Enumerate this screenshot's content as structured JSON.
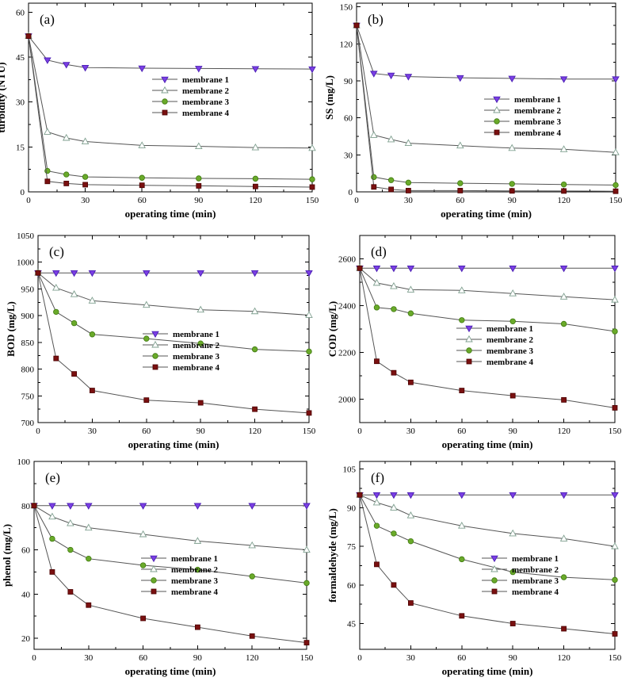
{
  "chart_data": [
    {
      "type": "line",
      "panel_label": "(a)",
      "xlabel": "operating time (min)",
      "ylabel": "turbidity (NTU)",
      "x": [
        0,
        10,
        20,
        30,
        60,
        90,
        120,
        150
      ],
      "xticks": [
        0,
        30,
        60,
        90,
        120,
        150
      ],
      "xlim": [
        0,
        150
      ],
      "ylim": [
        0,
        63
      ],
      "yticks": [
        0,
        15,
        30,
        45,
        60
      ],
      "legend_position": "center-right",
      "series": [
        {
          "name": "membrane 1",
          "values": [
            52,
            44,
            42.5,
            41.5,
            41.3,
            41.2,
            41.1,
            41.0
          ]
        },
        {
          "name": "membrane 2",
          "values": [
            52,
            20,
            18,
            16.8,
            15.5,
            15.2,
            14.8,
            14.6
          ]
        },
        {
          "name": "membrane 3",
          "values": [
            52,
            7,
            5.8,
            5.0,
            4.7,
            4.5,
            4.4,
            4.2
          ]
        },
        {
          "name": "membrane 4",
          "values": [
            52,
            3.5,
            2.8,
            2.4,
            2.2,
            2.0,
            1.8,
            1.6
          ]
        }
      ]
    },
    {
      "type": "line",
      "panel_label": "(b)",
      "xlabel": "operating time (min)",
      "ylabel": "SS (mg/L)",
      "x": [
        0,
        10,
        20,
        30,
        60,
        90,
        120,
        150
      ],
      "xticks": [
        0,
        30,
        60,
        90,
        120,
        150
      ],
      "xlim": [
        0,
        150
      ],
      "ylim": [
        0,
        153
      ],
      "yticks": [
        0,
        30,
        60,
        90,
        120,
        150
      ],
      "legend_position": "center-right",
      "series": [
        {
          "name": "membrane 1",
          "values": [
            135,
            96,
            94.5,
            93.5,
            92.5,
            92,
            91.5,
            91.5
          ]
        },
        {
          "name": "membrane 2",
          "values": [
            135,
            46,
            42.5,
            39.5,
            37.5,
            35.5,
            34.5,
            32
          ]
        },
        {
          "name": "membrane 3",
          "values": [
            135,
            12,
            9.5,
            7.5,
            7,
            6.5,
            6,
            5.5
          ]
        },
        {
          "name": "membrane 4",
          "values": [
            135,
            4,
            2,
            1,
            1,
            0.8,
            0.7,
            0.5
          ]
        }
      ]
    },
    {
      "type": "line",
      "panel_label": "(c)",
      "xlabel": "operating time (min)",
      "ylabel": "BOD (mg/L)",
      "x": [
        0,
        10,
        20,
        30,
        60,
        90,
        120,
        150
      ],
      "xticks": [
        0,
        30,
        60,
        90,
        120,
        150
      ],
      "xlim": [
        0,
        150
      ],
      "ylim": [
        700,
        1050
      ],
      "yticks": [
        700,
        750,
        800,
        850,
        900,
        950,
        1000,
        1050
      ],
      "legend_position": "lower-right",
      "series": [
        {
          "name": "membrane 1",
          "values": [
            980,
            980,
            980,
            980,
            980,
            980,
            980,
            980
          ]
        },
        {
          "name": "membrane 2",
          "values": [
            980,
            952,
            940,
            928,
            920,
            911,
            908,
            901
          ]
        },
        {
          "name": "membrane 3",
          "values": [
            980,
            907,
            886,
            865,
            857,
            848,
            837,
            833
          ]
        },
        {
          "name": "membrane 4",
          "values": [
            980,
            820,
            791,
            760,
            742,
            737,
            725,
            718
          ]
        }
      ]
    },
    {
      "type": "line",
      "panel_label": "(d)",
      "xlabel": "operating time (min)",
      "ylabel": "COD (mg/L)",
      "x": [
        0,
        10,
        20,
        30,
        60,
        90,
        120,
        150
      ],
      "xticks": [
        0,
        30,
        60,
        90,
        120,
        150
      ],
      "xlim": [
        0,
        150
      ],
      "ylim": [
        1900,
        2700
      ],
      "yticks": [
        2000,
        2200,
        2400,
        2600
      ],
      "legend_position": "center-right",
      "series": [
        {
          "name": "membrane 1",
          "values": [
            2560,
            2560,
            2560,
            2560,
            2560,
            2560,
            2560,
            2560
          ]
        },
        {
          "name": "membrane 2",
          "values": [
            2560,
            2497,
            2483,
            2468,
            2465,
            2452,
            2438,
            2425
          ]
        },
        {
          "name": "membrane 3",
          "values": [
            2560,
            2392,
            2385,
            2367,
            2338,
            2333,
            2322,
            2290
          ]
        },
        {
          "name": "membrane 4",
          "values": [
            2560,
            2162,
            2113,
            2072,
            2037,
            2015,
            1997,
            1963
          ]
        }
      ]
    },
    {
      "type": "line",
      "panel_label": "(e)",
      "xlabel": "operating time (min)",
      "ylabel": "phenol (mg/L)",
      "x": [
        0,
        10,
        20,
        30,
        60,
        90,
        120,
        150
      ],
      "xticks": [
        0,
        30,
        60,
        90,
        120,
        150
      ],
      "xlim": [
        0,
        150
      ],
      "ylim": [
        15,
        100
      ],
      "yticks": [
        20,
        40,
        60,
        80,
        100
      ],
      "legend_position": "lower-right",
      "series": [
        {
          "name": "membrane 1",
          "values": [
            80,
            80,
            80,
            80,
            80,
            80,
            80,
            80
          ]
        },
        {
          "name": "membrane 2",
          "values": [
            80,
            75,
            72,
            70,
            67,
            64,
            62,
            60
          ]
        },
        {
          "name": "membrane 3",
          "values": [
            80,
            65,
            60,
            56,
            53,
            51,
            48,
            45
          ]
        },
        {
          "name": "membrane 4",
          "values": [
            80,
            50,
            41,
            35,
            29,
            25,
            21,
            18
          ]
        }
      ]
    },
    {
      "type": "line",
      "panel_label": "(f)",
      "xlabel": "operating time (min)",
      "ylabel": "formaldehyde (mg/L)",
      "x": [
        0,
        10,
        20,
        30,
        60,
        90,
        120,
        150
      ],
      "xticks": [
        0,
        30,
        60,
        90,
        120,
        150
      ],
      "xlim": [
        0,
        150
      ],
      "ylim": [
        35,
        108
      ],
      "yticks": [
        45,
        60,
        75,
        90,
        105
      ],
      "legend_position": "lower-right",
      "series": [
        {
          "name": "membrane 1",
          "values": [
            95,
            95,
            95,
            95,
            95,
            95,
            95,
            95
          ]
        },
        {
          "name": "membrane 2",
          "values": [
            95,
            92,
            90,
            87,
            83,
            80,
            78,
            75
          ]
        },
        {
          "name": "membrane 3",
          "values": [
            95,
            83,
            80,
            77,
            70,
            65,
            63,
            62
          ]
        },
        {
          "name": "membrane 4",
          "values": [
            95,
            68,
            60,
            53,
            48,
            45,
            43,
            41
          ]
        }
      ]
    }
  ],
  "series_styles": [
    {
      "marker": "triangle-down",
      "fill": "#7b3fe4",
      "stroke": "#4b1fb4"
    },
    {
      "marker": "triangle-up",
      "fill": "#ffffff",
      "stroke": "#7f9f8f"
    },
    {
      "marker": "circle",
      "fill": "#6aaa2a",
      "stroke": "#3f7a10"
    },
    {
      "marker": "square",
      "fill": "#7a1010",
      "stroke": "#4a0000"
    }
  ]
}
